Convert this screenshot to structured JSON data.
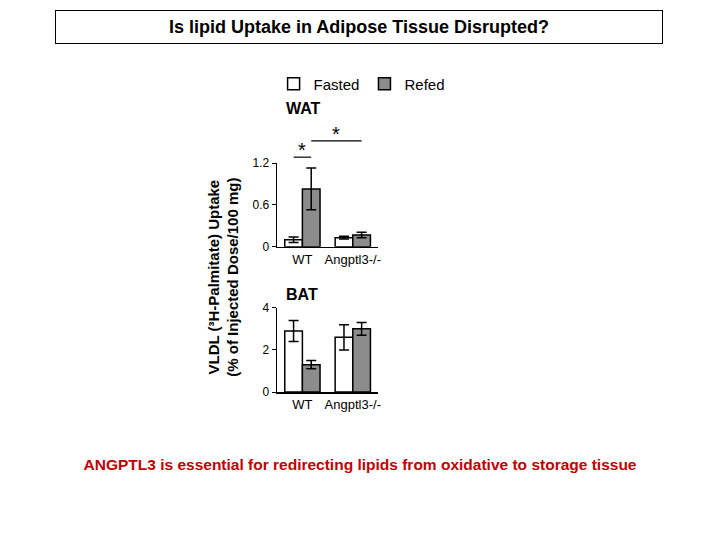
{
  "title": "Is lipid Uptake in Adipose Tissue Disrupted?",
  "y_label": [
    "VLDL (³H-Palmitate) Uptake",
    "(% of Injected Dose/100 mg)"
  ],
  "caption": "ANGPTL3 is essential for redirecting lipids from oxidative to storage tissue",
  "chart_data": [
    {
      "type": "bar",
      "title": "WAT",
      "categories": [
        "WT",
        "Angptl3-/-"
      ],
      "series": [
        {
          "name": "Fasted",
          "color": "#ffffff",
          "values": [
            0.1,
            0.13
          ],
          "errors": [
            0.04,
            0.02
          ]
        },
        {
          "name": "Refed",
          "color": "#8c8c8c",
          "values": [
            0.83,
            0.17
          ],
          "errors": [
            0.3,
            0.04
          ]
        }
      ],
      "ylim": [
        0,
        1.2
      ],
      "yticks": [
        0,
        0.6,
        1.2
      ],
      "grid": false,
      "annotations": [
        {
          "text": "*",
          "categories": [
            "WT"
          ]
        },
        {
          "text": "*",
          "categories": [
            "WT",
            "Angptl3-/-"
          ]
        }
      ]
    },
    {
      "type": "bar",
      "title": "BAT",
      "categories": [
        "WT",
        "Angptl3-/-"
      ],
      "series": [
        {
          "name": "Fasted",
          "color": "#ffffff",
          "values": [
            2.9,
            2.6
          ],
          "errors": [
            0.5,
            0.6
          ]
        },
        {
          "name": "Refed",
          "color": "#8c8c8c",
          "values": [
            1.3,
            3.0
          ],
          "errors": [
            0.2,
            0.3
          ]
        }
      ],
      "ylim": [
        0,
        4
      ],
      "yticks": [
        0,
        2,
        4
      ],
      "grid": false
    }
  ]
}
